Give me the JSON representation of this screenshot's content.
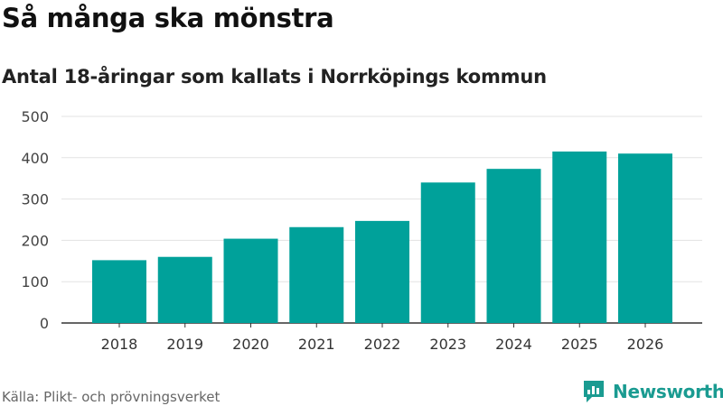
{
  "header": {
    "title": "Så många ska mönstra",
    "subtitle": "Antal 18-åringar som kallats i Norrköpings kommun"
  },
  "footer": {
    "source": "Källa: Plikt- och prövningsverket",
    "brand": "Newsworthy"
  },
  "colors": {
    "bar": "#00a19a",
    "grid": "#e3e3e3",
    "axis": "#333333",
    "brand": "#1a9b91"
  },
  "chart_data": {
    "type": "bar",
    "title": "Så många ska mönstra",
    "subtitle": "Antal 18-åringar som kallats i Norrköpings kommun",
    "categories": [
      "2018",
      "2019",
      "2020",
      "2021",
      "2022",
      "2023",
      "2024",
      "2025",
      "2026"
    ],
    "values": [
      152,
      160,
      204,
      232,
      247,
      340,
      373,
      415,
      410
    ],
    "yticks": [
      0,
      100,
      200,
      300,
      400,
      500
    ],
    "ylim": [
      0,
      500
    ],
    "xlabel": "",
    "ylabel": "",
    "grid": true,
    "legend": false
  }
}
